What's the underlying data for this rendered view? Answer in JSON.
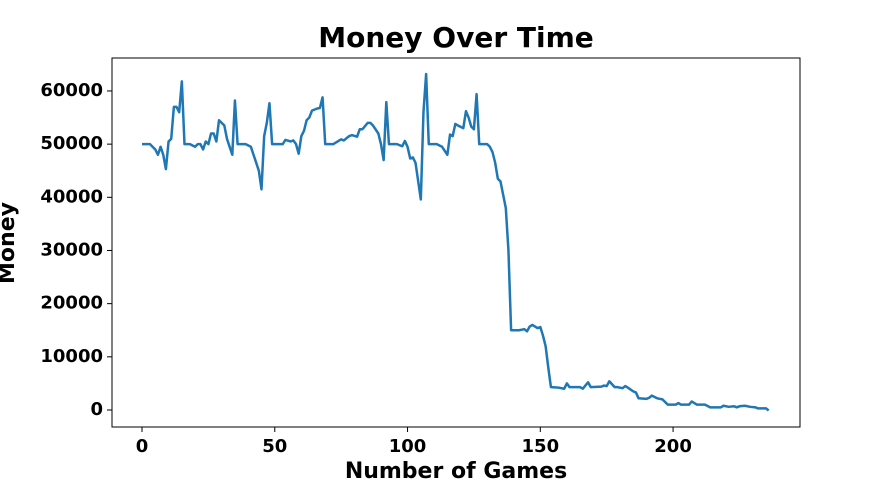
{
  "chart_data": {
    "type": "line",
    "title": "Money Over Time",
    "x_label": "Number of Games",
    "y_label": "Money",
    "color": "#1f77b4",
    "x": [
      0,
      3,
      5,
      6,
      7,
      8,
      9,
      10,
      11,
      12,
      13,
      14,
      15,
      16,
      18,
      20,
      21,
      22,
      23,
      24,
      25,
      26,
      27,
      28,
      29,
      31,
      32,
      34,
      35,
      36,
      39,
      41,
      42,
      44,
      45,
      46,
      47,
      48,
      49,
      53,
      54,
      56,
      57,
      58,
      59,
      60,
      61,
      62,
      63,
      64,
      66,
      67,
      68,
      69,
      72,
      73,
      75,
      76,
      78,
      79,
      81,
      82,
      83,
      85,
      86,
      87,
      89,
      90,
      91,
      92,
      93,
      96,
      98,
      99,
      100,
      101,
      102,
      103,
      105,
      106,
      107,
      108,
      111,
      113,
      115,
      116,
      117,
      118,
      119,
      121,
      122,
      123,
      124,
      125,
      126,
      127,
      130,
      131,
      132,
      133,
      134,
      135,
      137,
      138,
      139,
      142,
      144,
      145,
      146,
      147,
      149,
      150,
      151,
      152,
      153,
      154,
      157,
      159,
      160,
      161,
      165,
      166,
      168,
      169,
      173,
      174,
      175,
      176,
      178,
      179,
      181,
      182,
      183,
      185,
      186,
      187,
      190,
      191,
      192,
      194,
      196,
      197,
      198,
      201,
      202,
      203,
      206,
      207,
      209,
      212,
      214,
      218,
      219,
      221,
      223,
      224,
      225,
      227,
      229,
      231,
      232,
      235,
      236
    ],
    "values": [
      50000,
      50000,
      49000,
      48000,
      49500,
      48000,
      45300,
      50500,
      51000,
      57000,
      57000,
      56000,
      61800,
      50000,
      50000,
      49500,
      50000,
      50000,
      49000,
      50500,
      50000,
      52000,
      52000,
      50500,
      54500,
      53500,
      51000,
      48000,
      58200,
      50000,
      50000,
      49500,
      48000,
      45000,
      41500,
      51500,
      54000,
      57700,
      50000,
      50000,
      50800,
      50500,
      50700,
      50000,
      48200,
      51500,
      52500,
      54500,
      55000,
      56300,
      56700,
      56800,
      58800,
      50000,
      50000,
      50300,
      50900,
      50700,
      51500,
      51700,
      51400,
      52800,
      52800,
      54000,
      54000,
      53500,
      52000,
      50000,
      47000,
      57900,
      50000,
      50000,
      49600,
      50600,
      49500,
      47300,
      47500,
      46500,
      39600,
      56000,
      63200,
      50000,
      50000,
      49500,
      48000,
      51800,
      51500,
      53800,
      53500,
      53000,
      56200,
      55000,
      53300,
      52800,
      59400,
      50000,
      50000,
      49500,
      48500,
      46500,
      43500,
      43000,
      38000,
      30000,
      15000,
      15000,
      15200,
      14800,
      15700,
      16000,
      15400,
      15600,
      14000,
      12000,
      8000,
      4300,
      4200,
      4000,
      5000,
      4300,
      4300,
      4000,
      5200,
      4300,
      4400,
      4600,
      4500,
      5400,
      4300,
      4300,
      4100,
      4500,
      4200,
      3500,
      3300,
      2200,
      2100,
      2300,
      2700,
      2200,
      2000,
      1500,
      1000,
      1000,
      1300,
      1000,
      1000,
      1600,
      1000,
      1000,
      500,
      500,
      800,
      600,
      700,
      500,
      700,
      800,
      600,
      500,
      300,
      300,
      -100
    ],
    "xlim": [
      -11.3,
      247.8
    ],
    "ylim": [
      -3197,
      66200
    ],
    "xticks": [
      0,
      50,
      100,
      150,
      200
    ],
    "yticks": [
      0,
      10000,
      20000,
      30000,
      40000,
      50000,
      60000
    ]
  }
}
